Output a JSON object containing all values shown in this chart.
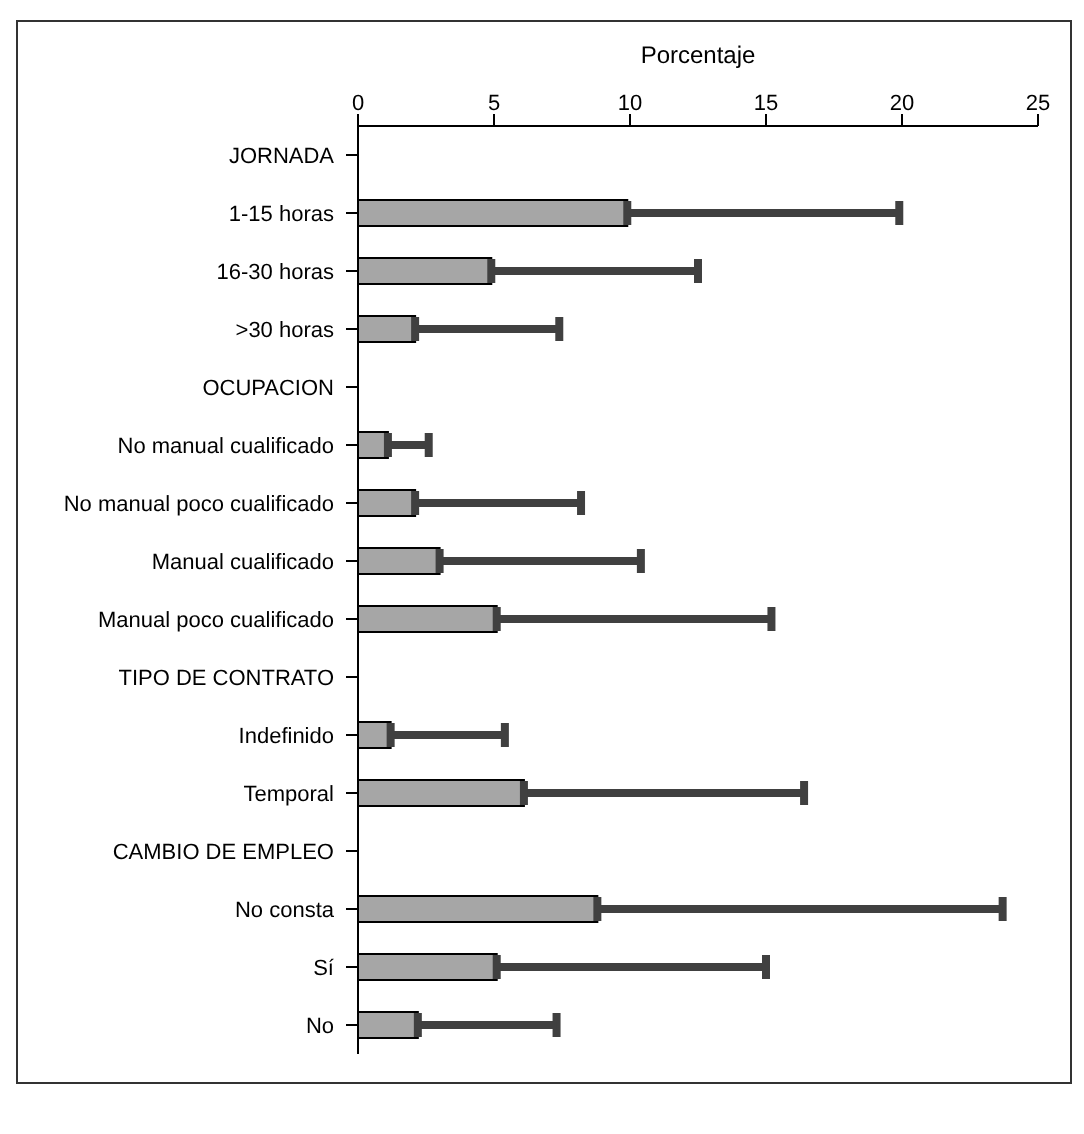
{
  "chart_data": {
    "type": "bar",
    "orientation": "horizontal",
    "xlabel": "Porcentaje",
    "categories": [
      "JORNADA",
      "1-15 horas",
      "16-30 horas",
      ">30 horas",
      "OCUPACION",
      "No manual cualificado",
      "No manual poco cualificado",
      "Manual cualificado",
      "Manual poco cualificado",
      "TIPO DE CONTRATO",
      "Indefinido",
      "Temporal",
      "CAMBIO DE EMPLEO",
      "No consta",
      "Sí",
      "No"
    ],
    "values": [
      null,
      9.9,
      4.9,
      2.1,
      null,
      1.1,
      2.1,
      3.0,
      5.1,
      null,
      1.2,
      6.1,
      null,
      8.8,
      5.1,
      2.2
    ],
    "errors": [
      null,
      [
        9.9,
        19.9
      ],
      [
        4.9,
        12.5
      ],
      [
        2.1,
        7.4
      ],
      null,
      [
        1.1,
        2.6
      ],
      [
        2.1,
        8.2
      ],
      [
        3.0,
        10.4
      ],
      [
        5.1,
        15.2
      ],
      null,
      [
        1.2,
        5.4
      ],
      [
        6.1,
        16.4
      ],
      null,
      [
        8.8,
        23.7
      ],
      [
        5.1,
        15.0
      ],
      [
        2.2,
        7.3
      ]
    ],
    "color": "#a6a6a6",
    "xlim": [
      0,
      25
    ],
    "xticks": [
      0,
      5,
      10,
      15,
      20,
      25
    ]
  }
}
